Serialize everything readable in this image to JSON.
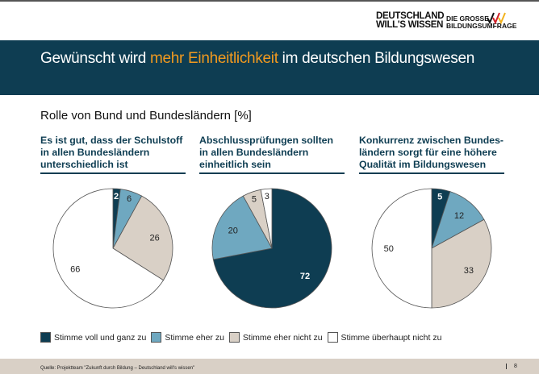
{
  "header": {
    "logo_left": [
      "DEUTSCHLAND",
      "WILL'S WISSEN"
    ],
    "logo_right": [
      "DIE GROSSE",
      "BILDUNGSUMFRAGE"
    ],
    "title_pre": "Gewünscht wird ",
    "title_highlight": "mehr Einheitlichkeit",
    "title_post": " im deutschen Bildungswesen",
    "highlight_color": "#f29a1f",
    "band_color": "#0e3d52"
  },
  "subtitle": "Rolle von Bund und Bundesländern [%]",
  "chart_data": [
    {
      "type": "pie",
      "title": "Es ist gut, dass der Schulstoff in allen Bundesländern unterschiedlich ist",
      "values": [
        2,
        6,
        26,
        66
      ]
    },
    {
      "type": "pie",
      "title": "Abschlussprüfungen sollten in allen Bundesländern einheitlich sein",
      "values": [
        72,
        20,
        5,
        3
      ]
    },
    {
      "type": "pie",
      "title": "Konkurrenz zwischen Bundes-ländern sorgt für eine höhere Qualität im Bildungswesen",
      "values": [
        5,
        12,
        33,
        50
      ]
    }
  ],
  "legend": [
    {
      "label": "Stimme voll und ganz zu",
      "color": "#0e3d52"
    },
    {
      "label": "Stimme eher zu",
      "color": "#6fa8c0"
    },
    {
      "label": "Stimme eher nicht zu",
      "color": "#d9d0c6"
    },
    {
      "label": "Stimme überhaupt nicht zu",
      "color": "#ffffff"
    }
  ],
  "footer": {
    "source": "Quelle: Projektteam \"Zukunft durch Bildung – Deutschland will's wissen\"",
    "page": "8"
  }
}
